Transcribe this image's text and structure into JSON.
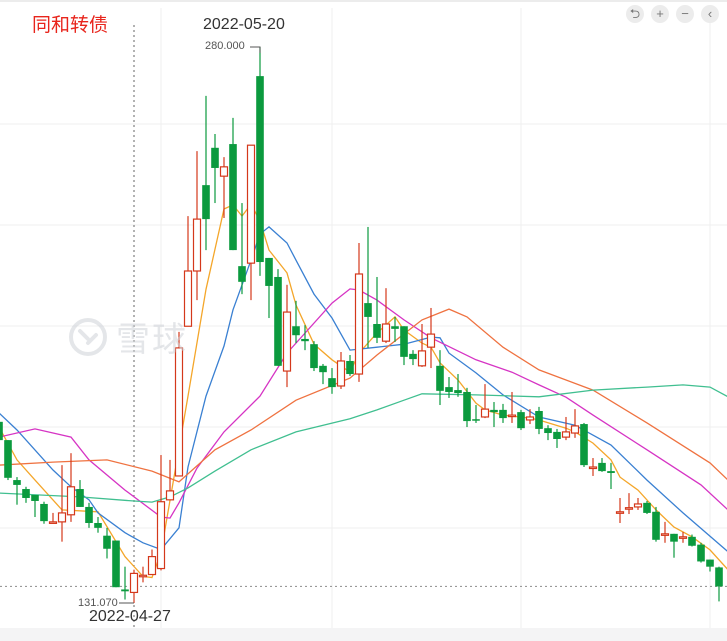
{
  "title": "同和转债",
  "watermark": "雪球",
  "toolbar": {
    "buttons": [
      {
        "name": "reset",
        "icon": "undo-icon",
        "glyph": "⮌"
      },
      {
        "name": "zoom-in",
        "icon": "plus-icon",
        "glyph": "+"
      },
      {
        "name": "zoom-out",
        "icon": "minus-icon",
        "glyph": "−"
      },
      {
        "name": "scroll-left",
        "icon": "chevron-left-icon",
        "glyph": "‹"
      }
    ]
  },
  "colors": {
    "up": "#d4381b",
    "down": "#0b9a3e",
    "title": "#e8251c",
    "ma5": "#f4a62a",
    "ma10": "#3a80d2",
    "ma20": "#d634c4",
    "ma30": "#ef7240",
    "ma60": "#40bf90"
  },
  "chart_data": {
    "type": "candlestick",
    "grid": true,
    "annotations": {
      "max": {
        "date": "2022-05-20",
        "value": "280.000",
        "candle_index": 29
      },
      "min": {
        "date": "2022-04-27",
        "value": "131.070",
        "candle_index": 15
      },
      "last_price_line": 135.5
    },
    "ylim": [
      128,
      285
    ],
    "candles_ohlc_note": "[open, close, high, low]",
    "candles": [
      [
        179.6,
        174.7,
        180.6,
        174.2
      ],
      [
        174.7,
        164.6,
        174.7,
        164.0
      ],
      [
        164.0,
        162.7,
        164.8,
        157.4
      ],
      [
        161.6,
        159.2,
        162.2,
        157.9
      ],
      [
        160.0,
        158.4,
        160.0,
        154.1
      ],
      [
        157.6,
        153.0,
        158.2,
        152.3
      ],
      [
        152.5,
        152.8,
        155.2,
        152.3
      ],
      [
        152.8,
        155.2,
        168.0,
        147.5
      ],
      [
        154.7,
        162.2,
        171.2,
        152.8
      ],
      [
        161.6,
        156.8,
        164.0,
        156.8
      ],
      [
        156.8,
        152.5,
        157.9,
        151.2
      ],
      [
        152.5,
        151.2,
        154.1,
        149.9
      ],
      [
        149.1,
        145.6,
        151.2,
        143.0
      ],
      [
        147.8,
        135.3,
        147.8,
        135.3
      ],
      [
        134.7,
        134.2,
        140.8,
        132.0
      ],
      [
        133.9,
        139.0,
        140.0,
        131.07
      ],
      [
        138.2,
        138.5,
        140.8,
        136.6
      ],
      [
        138.7,
        143.5,
        145.4,
        138.7
      ],
      [
        140.3,
        158.2,
        170.7,
        139.8
      ],
      [
        158.7,
        161.1,
        169.4,
        158.7
      ],
      [
        165.1,
        199.4,
        203.7,
        165.1
      ],
      [
        205.2,
        220.0,
        234.7,
        205.2
      ],
      [
        220.0,
        233.9,
        252.1,
        212.2
      ],
      [
        243.0,
        233.9,
        266.9,
        225.6
      ],
      [
        253.0,
        247.6,
        256.7,
        238.2
      ],
      [
        245.4,
        247.9,
        250.5,
        234.2
      ],
      [
        254.0,
        225.6,
        261.0,
        225.6
      ],
      [
        221.3,
        217.1,
        238.2,
        213.8
      ],
      [
        222.1,
        253.7,
        253.7,
        212.2
      ],
      [
        272.2,
        222.4,
        280.0,
        218.7
      ],
      [
        223.5,
        216.0,
        223.5,
        207.4
      ],
      [
        218.4,
        194.6,
        220.5,
        194.6
      ],
      [
        193.2,
        209.0,
        216.3,
        188.9
      ],
      [
        205.2,
        202.8,
        212.0,
        200.7
      ],
      [
        201.8,
        201.2,
        205.5,
        198.8
      ],
      [
        200.4,
        194.0,
        201.2,
        193.2
      ],
      [
        194.6,
        192.9,
        195.1,
        189.7
      ],
      [
        191.3,
        188.9,
        194.0,
        187.1
      ],
      [
        189.2,
        195.9,
        198.3,
        188.4
      ],
      [
        195.9,
        192.4,
        197.5,
        191.9
      ],
      [
        192.4,
        219.2,
        227.5,
        190.3
      ],
      [
        211.4,
        207.7,
        231.8,
        199.4
      ],
      [
        205.8,
        202.1,
        218.4,
        200.7
      ],
      [
        201.2,
        205.8,
        215.4,
        200.7
      ],
      [
        205.2,
        204.5,
        207.7,
        201.0
      ],
      [
        205.2,
        197.0,
        205.2,
        194.8
      ],
      [
        197.8,
        196.4,
        198.8,
        194.8
      ],
      [
        194.6,
        198.6,
        205.8,
        194.3
      ],
      [
        199.6,
        203.1,
        210.1,
        194.0
      ],
      [
        194.6,
        187.9,
        198.8,
        184.1
      ],
      [
        188.9,
        187.6,
        191.6,
        186.0
      ],
      [
        188.1,
        187.3,
        192.4,
        186.3
      ],
      [
        187.6,
        179.8,
        188.7,
        178.2
      ],
      [
        180.3,
        180.1,
        184.1,
        179.3
      ],
      [
        180.9,
        183.0,
        189.7,
        180.6
      ],
      [
        182.8,
        182.2,
        184.9,
        178.2
      ],
      [
        182.8,
        180.6,
        184.4,
        179.3
      ],
      [
        181.1,
        181.4,
        187.6,
        179.3
      ],
      [
        182.2,
        177.9,
        182.8,
        177.4
      ],
      [
        180.1,
        180.9,
        183.0,
        179.0
      ],
      [
        182.5,
        177.7,
        183.6,
        176.3
      ],
      [
        177.9,
        176.6,
        178.7,
        174.7
      ],
      [
        176.9,
        175.0,
        177.7,
        172.6
      ],
      [
        175.5,
        176.9,
        180.9,
        174.7
      ],
      [
        176.6,
        178.5,
        183.0,
        175.3
      ],
      [
        179.0,
        168.0,
        179.3,
        167.5
      ],
      [
        167.4,
        167.5,
        169.9,
        165.1
      ],
      [
        168.6,
        166.4,
        169.9,
        166.2
      ],
      [
        166.4,
        165.9,
        168.6,
        161.6
      ],
      [
        155.4,
        155.5,
        159.2,
        152.5
      ],
      [
        156.4,
        156.6,
        160.5,
        154.9
      ],
      [
        156.8,
        157.6,
        159.2,
        156.0
      ],
      [
        157.9,
        155.2,
        158.4,
        154.9
      ],
      [
        155.5,
        148.0,
        156.8,
        147.5
      ],
      [
        149.5,
        149.6,
        152.8,
        147.2
      ],
      [
        149.6,
        147.5,
        149.6,
        143.2
      ],
      [
        148.7,
        148.8,
        150.1,
        147.2
      ],
      [
        148.8,
        146.4,
        149.4,
        146.2
      ],
      [
        146.7,
        142.2,
        147.2,
        141.9
      ],
      [
        142.7,
        140.8,
        142.7,
        139.5
      ],
      [
        140.6,
        135.5,
        140.8,
        131.5
      ]
    ],
    "moving_averages": [
      {
        "key": "ma5",
        "points": [
          [
            0,
            178.2
          ],
          [
            2,
            169.4
          ],
          [
            4,
            164.0
          ],
          [
            7,
            156.0
          ],
          [
            11,
            155.5
          ],
          [
            14,
            143.5
          ],
          [
            16,
            138.2
          ],
          [
            17,
            137.9
          ],
          [
            18,
            144.6
          ],
          [
            21,
            186.5
          ],
          [
            23,
            215.1
          ],
          [
            25,
            236.6
          ],
          [
            26,
            237.7
          ],
          [
            27,
            234.7
          ],
          [
            28,
            237.9
          ],
          [
            29,
            233.4
          ],
          [
            30,
            225.6
          ],
          [
            32,
            219.5
          ],
          [
            33,
            210.9
          ],
          [
            35,
            200.4
          ],
          [
            37,
            196.2
          ],
          [
            39,
            192.9
          ],
          [
            40,
            198.0
          ],
          [
            42,
            203.4
          ],
          [
            44,
            207.7
          ],
          [
            45,
            204.2
          ],
          [
            47,
            200.7
          ],
          [
            48,
            199.6
          ],
          [
            49,
            195.4
          ],
          [
            51,
            190.8
          ],
          [
            53,
            184.6
          ],
          [
            54,
            182.8
          ],
          [
            56,
            181.4
          ],
          [
            59,
            180.6
          ],
          [
            60,
            180.1
          ],
          [
            63,
            177.9
          ],
          [
            64,
            176.9
          ],
          [
            66,
            173.9
          ],
          [
            68,
            169.4
          ],
          [
            69,
            164.8
          ],
          [
            71,
            161.3
          ],
          [
            73,
            156.0
          ],
          [
            75,
            151.4
          ],
          [
            77,
            148.8
          ],
          [
            79,
            145.3
          ],
          [
            81,
            140.0
          ]
        ]
      },
      {
        "key": "ma10",
        "points": [
          [
            0,
            182.0
          ],
          [
            2,
            177.4
          ],
          [
            6,
            166.7
          ],
          [
            8,
            162.2
          ],
          [
            10,
            158.7
          ],
          [
            11,
            155.2
          ],
          [
            14,
            149.9
          ],
          [
            16,
            147.2
          ],
          [
            18,
            145.4
          ],
          [
            20,
            151.2
          ],
          [
            21,
            167.5
          ],
          [
            23,
            186.5
          ],
          [
            25,
            199.9
          ],
          [
            26,
            209.6
          ],
          [
            28,
            222.9
          ],
          [
            29,
            229.9
          ],
          [
            30,
            231.8
          ],
          [
            32,
            227.5
          ],
          [
            33,
            222.9
          ],
          [
            35,
            213.8
          ],
          [
            37,
            207.4
          ],
          [
            39,
            198.8
          ],
          [
            42,
            199.6
          ],
          [
            45,
            200.4
          ],
          [
            48,
            202.3
          ],
          [
            49,
            202.1
          ],
          [
            50,
            198.0
          ],
          [
            53,
            192.7
          ],
          [
            56,
            186.8
          ],
          [
            60,
            180.9
          ],
          [
            64,
            178.7
          ],
          [
            68,
            173.4
          ],
          [
            72,
            164.0
          ],
          [
            76,
            155.2
          ],
          [
            81,
            144.8
          ]
        ]
      },
      {
        "key": "ma20",
        "points": [
          [
            0,
            175.5
          ],
          [
            4,
            177.7
          ],
          [
            8,
            175.5
          ],
          [
            10,
            169.4
          ],
          [
            14,
            161.3
          ],
          [
            18,
            154.1
          ],
          [
            19,
            153.8
          ],
          [
            20,
            157.9
          ],
          [
            22,
            167.2
          ],
          [
            25,
            176.9
          ],
          [
            29,
            186.5
          ],
          [
            32,
            198.0
          ],
          [
            37,
            211.4
          ],
          [
            39,
            215.2
          ],
          [
            40,
            214.9
          ],
          [
            42,
            212.2
          ],
          [
            45,
            206.9
          ],
          [
            48,
            202.1
          ],
          [
            53,
            196.2
          ],
          [
            57,
            192.9
          ],
          [
            60,
            189.5
          ],
          [
            63,
            186.2
          ],
          [
            66,
            181.4
          ],
          [
            72,
            172.1
          ],
          [
            78,
            162.7
          ],
          [
            81,
            156.0
          ]
        ]
      },
      {
        "key": "ma30",
        "points": [
          [
            0,
            168.0
          ],
          [
            6,
            168.8
          ],
          [
            12,
            169.4
          ],
          [
            17,
            166.4
          ],
          [
            20,
            163.5
          ],
          [
            24,
            172.1
          ],
          [
            28,
            177.4
          ],
          [
            33,
            185.4
          ],
          [
            39,
            191.3
          ],
          [
            42,
            197.5
          ],
          [
            47,
            206.9
          ],
          [
            50,
            209.8
          ],
          [
            52,
            207.7
          ],
          [
            56,
            199.6
          ],
          [
            60,
            193.5
          ],
          [
            66,
            188.1
          ],
          [
            72,
            179.3
          ],
          [
            79,
            168.6
          ],
          [
            81,
            164.0
          ]
        ]
      },
      {
        "key": "ma60",
        "points": [
          [
            0,
            160.5
          ],
          [
            9,
            159.5
          ],
          [
            15,
            158.4
          ],
          [
            17,
            158.1
          ],
          [
            19,
            159.5
          ],
          [
            21,
            161.9
          ],
          [
            24,
            166.4
          ],
          [
            28,
            172.1
          ],
          [
            33,
            176.9
          ],
          [
            39,
            180.4
          ],
          [
            42,
            182.8
          ],
          [
            45,
            185.4
          ],
          [
            47,
            187.1
          ],
          [
            53,
            186.8
          ],
          [
            60,
            186.3
          ],
          [
            66,
            188.1
          ],
          [
            72,
            188.9
          ],
          [
            76,
            189.5
          ],
          [
            79,
            188.9
          ],
          [
            81,
            186.3
          ]
        ]
      }
    ]
  }
}
